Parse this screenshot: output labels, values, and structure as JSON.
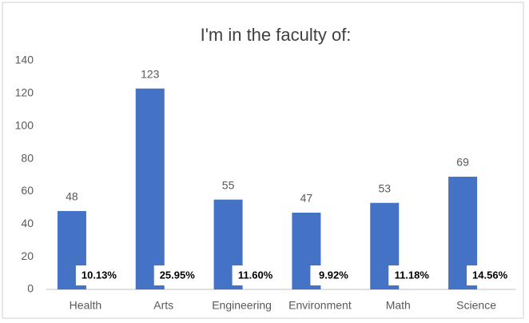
{
  "chart_data": {
    "type": "bar",
    "title": "I'm in the faculty of:",
    "categories": [
      "Health",
      "Arts",
      "Engineering",
      "Environment",
      "Math",
      "Science"
    ],
    "values": [
      48,
      123,
      55,
      47,
      53,
      69
    ],
    "annotations": [
      "10.13%",
      "25.95%",
      "11.60%",
      "9.92%",
      "11.18%",
      "14.56%"
    ],
    "color": "#4472c4",
    "ylim": [
      0,
      140
    ],
    "yticks": [
      0,
      20,
      40,
      60,
      80,
      100,
      120,
      140
    ],
    "grid": false
  }
}
